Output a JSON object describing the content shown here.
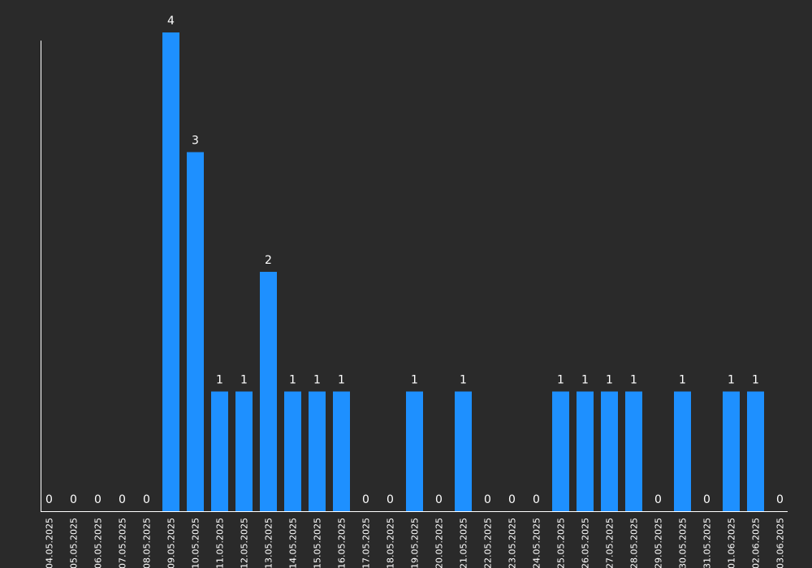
{
  "chart_data": {
    "type": "bar",
    "categories": [
      "04.05.2025",
      "05.05.2025",
      "06.05.2025",
      "07.05.2025",
      "08.05.2025",
      "09.05.2025",
      "10.05.2025",
      "11.05.2025",
      "12.05.2025",
      "13.05.2025",
      "14.05.2025",
      "15.05.2025",
      "16.05.2025",
      "17.05.2025",
      "18.05.2025",
      "19.05.2025",
      "20.05.2025",
      "21.05.2025",
      "22.05.2025",
      "23.05.2025",
      "24.05.2025",
      "25.05.2025",
      "26.05.2025",
      "27.05.2025",
      "28.05.2025",
      "29.05.2025",
      "30.05.2025",
      "31.05.2025",
      "01.06.2025",
      "02.06.2025",
      "03.06.2025"
    ],
    "values": [
      0,
      0,
      0,
      0,
      0,
      4,
      3,
      1,
      1,
      2,
      1,
      1,
      1,
      0,
      0,
      1,
      0,
      1,
      0,
      0,
      0,
      1,
      1,
      1,
      1,
      0,
      1,
      0,
      1,
      1,
      0
    ],
    "title": "",
    "xlabel": "",
    "ylabel": "",
    "ylim": [
      0,
      4
    ],
    "grid": false,
    "colors": {
      "bar": "#1e90ff",
      "background": "#2a2a2a",
      "text": "#ffffff",
      "axis": "#ffffff"
    }
  }
}
